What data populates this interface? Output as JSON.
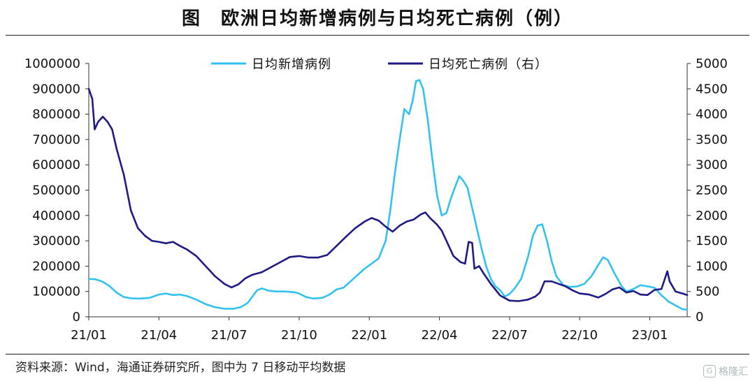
{
  "title": "图　欧洲日均新增病例与日均死亡病例（例）",
  "source": "资料来源：Wind，海通证券研究所，图中为 7 日移动平均数据",
  "watermark": {
    "text": "格隆汇",
    "logo_text": "G"
  },
  "chart_data": {
    "type": "line",
    "title": "图　欧洲日均新增病例与日均死亡病例（例）",
    "x_ticks": [
      "21/01",
      "21/04",
      "21/07",
      "21/10",
      "22/01",
      "22/04",
      "22/07",
      "22/10",
      "23/01"
    ],
    "x_tick_months": [
      0,
      3,
      6,
      9,
      12,
      15,
      18,
      21,
      24
    ],
    "x_range_months": [
      0,
      25.6
    ],
    "y_left": {
      "range": [
        0,
        1000000
      ],
      "ticks": [
        0,
        100000,
        200000,
        300000,
        400000,
        500000,
        600000,
        700000,
        800000,
        900000,
        1000000
      ]
    },
    "y_right": {
      "range": [
        0,
        5000
      ],
      "ticks": [
        0,
        500,
        1000,
        1500,
        2000,
        2500,
        3000,
        3500,
        4000,
        4500,
        5000
      ]
    },
    "legend": "top-center",
    "grid": false,
    "series": [
      {
        "name": "日均新增病例",
        "axis": "left",
        "color": "#33c2f0",
        "points": [
          [
            0,
            150000
          ],
          [
            0.3,
            148000
          ],
          [
            0.6,
            138000
          ],
          [
            0.9,
            120000
          ],
          [
            1.2,
            95000
          ],
          [
            1.5,
            78000
          ],
          [
            1.8,
            73000
          ],
          [
            2.2,
            72000
          ],
          [
            2.6,
            75000
          ],
          [
            3.0,
            88000
          ],
          [
            3.3,
            92000
          ],
          [
            3.6,
            86000
          ],
          [
            3.9,
            88000
          ],
          [
            4.2,
            82000
          ],
          [
            4.6,
            68000
          ],
          [
            5.0,
            50000
          ],
          [
            5.4,
            38000
          ],
          [
            5.8,
            32000
          ],
          [
            6.2,
            32000
          ],
          [
            6.5,
            38000
          ],
          [
            6.8,
            55000
          ],
          [
            7.0,
            80000
          ],
          [
            7.2,
            105000
          ],
          [
            7.4,
            112000
          ],
          [
            7.7,
            103000
          ],
          [
            8.0,
            100000
          ],
          [
            8.4,
            100000
          ],
          [
            8.8,
            97000
          ],
          [
            9.0,
            92000
          ],
          [
            9.3,
            78000
          ],
          [
            9.6,
            72000
          ],
          [
            10.0,
            75000
          ],
          [
            10.3,
            88000
          ],
          [
            10.6,
            108000
          ],
          [
            10.9,
            115000
          ],
          [
            11.2,
            140000
          ],
          [
            11.5,
            165000
          ],
          [
            11.8,
            190000
          ],
          [
            12.1,
            210000
          ],
          [
            12.4,
            230000
          ],
          [
            12.7,
            300000
          ],
          [
            12.9,
            420000
          ],
          [
            13.1,
            570000
          ],
          [
            13.3,
            700000
          ],
          [
            13.5,
            820000
          ],
          [
            13.7,
            800000
          ],
          [
            13.85,
            850000
          ],
          [
            14.0,
            930000
          ],
          [
            14.15,
            935000
          ],
          [
            14.3,
            900000
          ],
          [
            14.5,
            780000
          ],
          [
            14.7,
            620000
          ],
          [
            14.9,
            480000
          ],
          [
            15.1,
            400000
          ],
          [
            15.3,
            410000
          ],
          [
            15.5,
            470000
          ],
          [
            15.7,
            520000
          ],
          [
            15.85,
            555000
          ],
          [
            16.0,
            540000
          ],
          [
            16.2,
            510000
          ],
          [
            16.4,
            430000
          ],
          [
            16.6,
            350000
          ],
          [
            16.8,
            270000
          ],
          [
            17.0,
            200000
          ],
          [
            17.2,
            150000
          ],
          [
            17.4,
            120000
          ],
          [
            17.6,
            105000
          ],
          [
            17.8,
            80000
          ],
          [
            18.0,
            90000
          ],
          [
            18.2,
            110000
          ],
          [
            18.5,
            150000
          ],
          [
            18.8,
            240000
          ],
          [
            19.0,
            320000
          ],
          [
            19.2,
            360000
          ],
          [
            19.4,
            365000
          ],
          [
            19.6,
            300000
          ],
          [
            19.8,
            220000
          ],
          [
            20.0,
            160000
          ],
          [
            20.3,
            125000
          ],
          [
            20.6,
            118000
          ],
          [
            20.9,
            120000
          ],
          [
            21.2,
            130000
          ],
          [
            21.5,
            160000
          ],
          [
            21.8,
            205000
          ],
          [
            22.0,
            235000
          ],
          [
            22.2,
            225000
          ],
          [
            22.5,
            170000
          ],
          [
            22.8,
            120000
          ],
          [
            23.0,
            100000
          ],
          [
            23.3,
            110000
          ],
          [
            23.6,
            125000
          ],
          [
            23.9,
            120000
          ],
          [
            24.2,
            115000
          ],
          [
            24.5,
            85000
          ],
          [
            24.8,
            60000
          ],
          [
            25.1,
            45000
          ],
          [
            25.4,
            30000
          ],
          [
            25.6,
            28000
          ]
        ]
      },
      {
        "name": "日均死亡病例（右）",
        "axis": "right",
        "color": "#1f1a86",
        "points": [
          [
            0,
            4500
          ],
          [
            0.15,
            4300
          ],
          [
            0.25,
            3700
          ],
          [
            0.4,
            3850
          ],
          [
            0.6,
            3950
          ],
          [
            0.8,
            3850
          ],
          [
            1.0,
            3700
          ],
          [
            1.2,
            3300
          ],
          [
            1.5,
            2800
          ],
          [
            1.8,
            2100
          ],
          [
            2.1,
            1750
          ],
          [
            2.4,
            1600
          ],
          [
            2.7,
            1500
          ],
          [
            3.0,
            1480
          ],
          [
            3.3,
            1450
          ],
          [
            3.6,
            1480
          ],
          [
            3.9,
            1400
          ],
          [
            4.2,
            1330
          ],
          [
            4.6,
            1200
          ],
          [
            5.0,
            1000
          ],
          [
            5.4,
            800
          ],
          [
            5.8,
            650
          ],
          [
            6.1,
            580
          ],
          [
            6.4,
            640
          ],
          [
            6.7,
            760
          ],
          [
            7.0,
            830
          ],
          [
            7.4,
            880
          ],
          [
            7.8,
            980
          ],
          [
            8.2,
            1080
          ],
          [
            8.6,
            1180
          ],
          [
            9.0,
            1200
          ],
          [
            9.4,
            1170
          ],
          [
            9.8,
            1170
          ],
          [
            10.2,
            1220
          ],
          [
            10.6,
            1400
          ],
          [
            11.0,
            1580
          ],
          [
            11.4,
            1750
          ],
          [
            11.8,
            1880
          ],
          [
            12.1,
            1950
          ],
          [
            12.4,
            1900
          ],
          [
            12.7,
            1780
          ],
          [
            13.0,
            1680
          ],
          [
            13.3,
            1800
          ],
          [
            13.6,
            1880
          ],
          [
            13.9,
            1920
          ],
          [
            14.2,
            2020
          ],
          [
            14.4,
            2060
          ],
          [
            14.6,
            1950
          ],
          [
            14.9,
            1820
          ],
          [
            15.1,
            1700
          ],
          [
            15.3,
            1500
          ],
          [
            15.6,
            1200
          ],
          [
            15.9,
            1080
          ],
          [
            16.1,
            1050
          ],
          [
            16.25,
            1480
          ],
          [
            16.4,
            1460
          ],
          [
            16.5,
            950
          ],
          [
            16.7,
            1000
          ],
          [
            16.9,
            850
          ],
          [
            17.2,
            650
          ],
          [
            17.6,
            420
          ],
          [
            18.0,
            320
          ],
          [
            18.4,
            310
          ],
          [
            18.8,
            340
          ],
          [
            19.1,
            400
          ],
          [
            19.3,
            480
          ],
          [
            19.5,
            700
          ],
          [
            19.8,
            700
          ],
          [
            20.1,
            650
          ],
          [
            20.4,
            600
          ],
          [
            20.7,
            520
          ],
          [
            21.0,
            460
          ],
          [
            21.4,
            440
          ],
          [
            21.8,
            380
          ],
          [
            22.1,
            450
          ],
          [
            22.4,
            540
          ],
          [
            22.7,
            580
          ],
          [
            23.0,
            480
          ],
          [
            23.3,
            510
          ],
          [
            23.6,
            440
          ],
          [
            23.9,
            430
          ],
          [
            24.2,
            530
          ],
          [
            24.5,
            550
          ],
          [
            24.75,
            900
          ],
          [
            24.85,
            700
          ],
          [
            25.1,
            500
          ],
          [
            25.4,
            460
          ],
          [
            25.6,
            430
          ]
        ]
      }
    ]
  }
}
